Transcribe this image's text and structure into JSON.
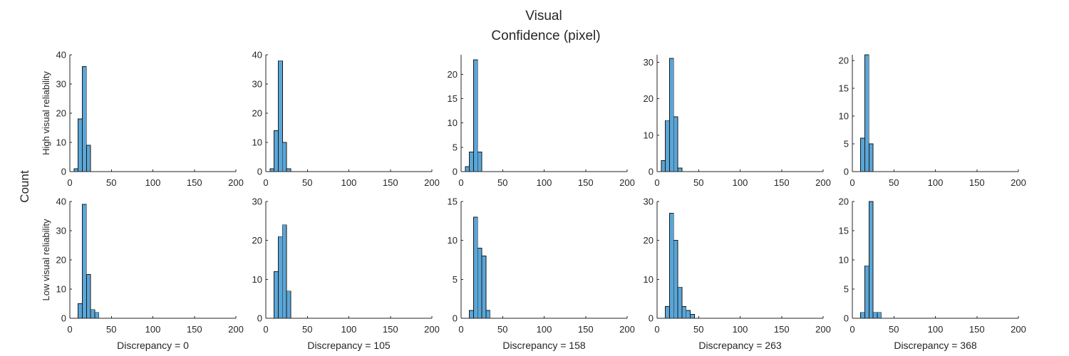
{
  "figure": {
    "title_line1": "Visual",
    "title_line2": "Confidence (pixel)",
    "ylabel": "Count",
    "row_labels": [
      "High visual reliability",
      "Low visual reliability"
    ],
    "bar_color": "#5aa6d8"
  },
  "chart_data": [
    {
      "type": "bar",
      "row": 0,
      "col": 0,
      "xlabel": "",
      "ylabel": "",
      "xlim": [
        0,
        200
      ],
      "ylim": [
        0,
        40
      ],
      "yticks": [
        0,
        10,
        20,
        30,
        40
      ],
      "xticks": [
        0,
        50,
        100,
        150,
        200
      ],
      "bin_width": 5,
      "bins": [
        {
          "x0": 5,
          "count": 1
        },
        {
          "x0": 10,
          "count": 18
        },
        {
          "x0": 15,
          "count": 36
        },
        {
          "x0": 20,
          "count": 9
        }
      ]
    },
    {
      "type": "bar",
      "row": 0,
      "col": 1,
      "xlabel": "",
      "ylabel": "",
      "xlim": [
        0,
        200
      ],
      "ylim": [
        0,
        40
      ],
      "yticks": [
        0,
        10,
        20,
        30,
        40
      ],
      "xticks": [
        0,
        50,
        100,
        150,
        200
      ],
      "bin_width": 5,
      "bins": [
        {
          "x0": 5,
          "count": 1
        },
        {
          "x0": 10,
          "count": 14
        },
        {
          "x0": 15,
          "count": 38
        },
        {
          "x0": 20,
          "count": 10
        },
        {
          "x0": 25,
          "count": 1
        }
      ]
    },
    {
      "type": "bar",
      "row": 0,
      "col": 2,
      "xlabel": "",
      "ylabel": "",
      "xlim": [
        0,
        200
      ],
      "ylim": [
        0,
        24
      ],
      "yticks": [
        0,
        5,
        10,
        15,
        20
      ],
      "xticks": [
        0,
        50,
        100,
        150,
        200
      ],
      "bin_width": 5,
      "bins": [
        {
          "x0": 5,
          "count": 1
        },
        {
          "x0": 10,
          "count": 4
        },
        {
          "x0": 15,
          "count": 23
        },
        {
          "x0": 20,
          "count": 4
        }
      ]
    },
    {
      "type": "bar",
      "row": 0,
      "col": 3,
      "xlabel": "",
      "ylabel": "",
      "xlim": [
        0,
        200
      ],
      "ylim": [
        0,
        32
      ],
      "yticks": [
        0,
        10,
        20,
        30
      ],
      "xticks": [
        0,
        50,
        100,
        150,
        200
      ],
      "bin_width": 5,
      "bins": [
        {
          "x0": 5,
          "count": 3
        },
        {
          "x0": 10,
          "count": 14
        },
        {
          "x0": 15,
          "count": 31
        },
        {
          "x0": 20,
          "count": 15
        },
        {
          "x0": 25,
          "count": 1
        }
      ]
    },
    {
      "type": "bar",
      "row": 0,
      "col": 4,
      "xlabel": "",
      "ylabel": "",
      "xlim": [
        0,
        200
      ],
      "ylim": [
        0,
        21
      ],
      "yticks": [
        0,
        5,
        10,
        15,
        20
      ],
      "xticks": [
        0,
        50,
        100,
        150,
        200
      ],
      "bin_width": 5,
      "bins": [
        {
          "x0": 10,
          "count": 6
        },
        {
          "x0": 15,
          "count": 21
        },
        {
          "x0": 20,
          "count": 5
        }
      ]
    },
    {
      "type": "bar",
      "row": 1,
      "col": 0,
      "xlabel": "Discrepancy = 0",
      "ylabel": "",
      "xlim": [
        0,
        200
      ],
      "ylim": [
        0,
        40
      ],
      "yticks": [
        0,
        10,
        20,
        30,
        40
      ],
      "xticks": [
        0,
        50,
        100,
        150,
        200
      ],
      "bin_width": 5,
      "bins": [
        {
          "x0": 10,
          "count": 5
        },
        {
          "x0": 15,
          "count": 39
        },
        {
          "x0": 20,
          "count": 15
        },
        {
          "x0": 25,
          "count": 3
        },
        {
          "x0": 30,
          "count": 2
        }
      ]
    },
    {
      "type": "bar",
      "row": 1,
      "col": 1,
      "xlabel": "Discrepancy = 105",
      "ylabel": "",
      "xlim": [
        0,
        200
      ],
      "ylim": [
        0,
        30
      ],
      "yticks": [
        0,
        10,
        20,
        30
      ],
      "xticks": [
        0,
        50,
        100,
        150,
        200
      ],
      "bin_width": 5,
      "bins": [
        {
          "x0": 10,
          "count": 12
        },
        {
          "x0": 15,
          "count": 21
        },
        {
          "x0": 20,
          "count": 24
        },
        {
          "x0": 25,
          "count": 7
        }
      ]
    },
    {
      "type": "bar",
      "row": 1,
      "col": 2,
      "xlabel": "Discrepancy = 158",
      "ylabel": "",
      "xlim": [
        0,
        200
      ],
      "ylim": [
        0,
        15
      ],
      "yticks": [
        0,
        5,
        10,
        15
      ],
      "xticks": [
        0,
        50,
        100,
        150,
        200
      ],
      "bin_width": 5,
      "bins": [
        {
          "x0": 10,
          "count": 1
        },
        {
          "x0": 15,
          "count": 13
        },
        {
          "x0": 20,
          "count": 9
        },
        {
          "x0": 25,
          "count": 8
        },
        {
          "x0": 30,
          "count": 1
        }
      ]
    },
    {
      "type": "bar",
      "row": 1,
      "col": 3,
      "xlabel": "Discrepancy = 263",
      "ylabel": "",
      "xlim": [
        0,
        200
      ],
      "ylim": [
        0,
        30
      ],
      "yticks": [
        0,
        10,
        20,
        30
      ],
      "xticks": [
        0,
        50,
        100,
        150,
        200
      ],
      "bin_width": 5,
      "bins": [
        {
          "x0": 10,
          "count": 3
        },
        {
          "x0": 15,
          "count": 27
        },
        {
          "x0": 20,
          "count": 20
        },
        {
          "x0": 25,
          "count": 8
        },
        {
          "x0": 30,
          "count": 3
        },
        {
          "x0": 35,
          "count": 2
        },
        {
          "x0": 40,
          "count": 1
        }
      ]
    },
    {
      "type": "bar",
      "row": 1,
      "col": 4,
      "xlabel": "Discrepancy = 368",
      "ylabel": "",
      "xlim": [
        0,
        200
      ],
      "ylim": [
        0,
        20
      ],
      "yticks": [
        0,
        5,
        10,
        15,
        20
      ],
      "xticks": [
        0,
        50,
        100,
        150,
        200
      ],
      "bin_width": 5,
      "bins": [
        {
          "x0": 10,
          "count": 1
        },
        {
          "x0": 15,
          "count": 9
        },
        {
          "x0": 20,
          "count": 20
        },
        {
          "x0": 25,
          "count": 1
        },
        {
          "x0": 30,
          "count": 1
        }
      ]
    }
  ]
}
